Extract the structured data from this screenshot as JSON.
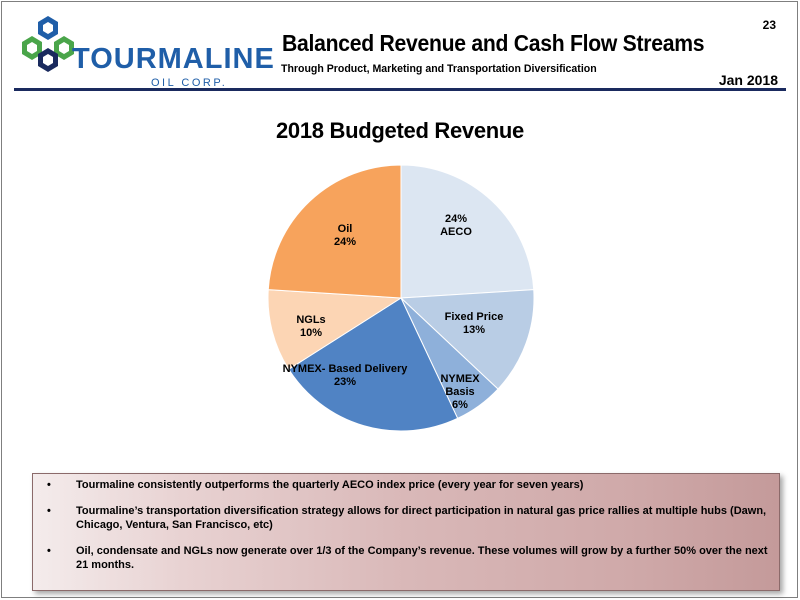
{
  "header": {
    "logo_text": "TOURMALINE",
    "logo_subtext": "OIL CORP.",
    "page_number": "23",
    "title": "Balanced Revenue and Cash Flow Streams",
    "subtitle": "Through Product, Marketing and Transportation Diversification",
    "date": "Jan 2018"
  },
  "colors": {
    "logo_blue": "#1f5ea8",
    "logo_green": "#4aa54a",
    "logo_navy": "#1a2a5e",
    "rule": "#1a2a5e"
  },
  "chart_data": {
    "type": "pie",
    "title": "2018 Budgeted Revenue",
    "slices": [
      {
        "name": "AECO",
        "value": 24,
        "label_lines": [
          "24%",
          "AECO"
        ],
        "color": "#dce6f2"
      },
      {
        "name": "Fixed Price",
        "value": 13,
        "label_lines": [
          "Fixed Price",
          "13%"
        ],
        "color": "#b9cde5"
      },
      {
        "name": "NYMEX Basis",
        "value": 6,
        "label_lines": [
          "NYMEX",
          "Basis",
          "6%"
        ],
        "color": "#8eb0da"
      },
      {
        "name": "NYMEX- Based Delivery",
        "value": 23,
        "label_lines": [
          "NYMEX- Based Delivery",
          "23%"
        ],
        "color": "#5083c4"
      },
      {
        "name": "NGLs",
        "value": 10,
        "label_lines": [
          "NGLs",
          "10%"
        ],
        "color": "#fcd5b4"
      },
      {
        "name": "Oil",
        "value": 24,
        "label_lines": [
          "Oil",
          "24%"
        ],
        "color": "#f7a35c"
      }
    ],
    "start_angle_deg": 0,
    "direction": "clockwise"
  },
  "bullets": [
    {
      "marker": "•",
      "text": "Tourmaline consistently outperforms the quarterly AECO index price (every year for seven years)"
    },
    {
      "marker": "•",
      "text": "Tourmaline’s transportation diversification strategy allows for direct participation in natural gas price rallies at multiple hubs (Dawn, Chicago, Ventura, San Francisco, etc)"
    },
    {
      "marker": "•",
      "text": "Oil, condensate and NGLs now generate over 1/3 of the Company’s revenue. These volumes will grow by a further 50% over the next 21 months."
    }
  ]
}
